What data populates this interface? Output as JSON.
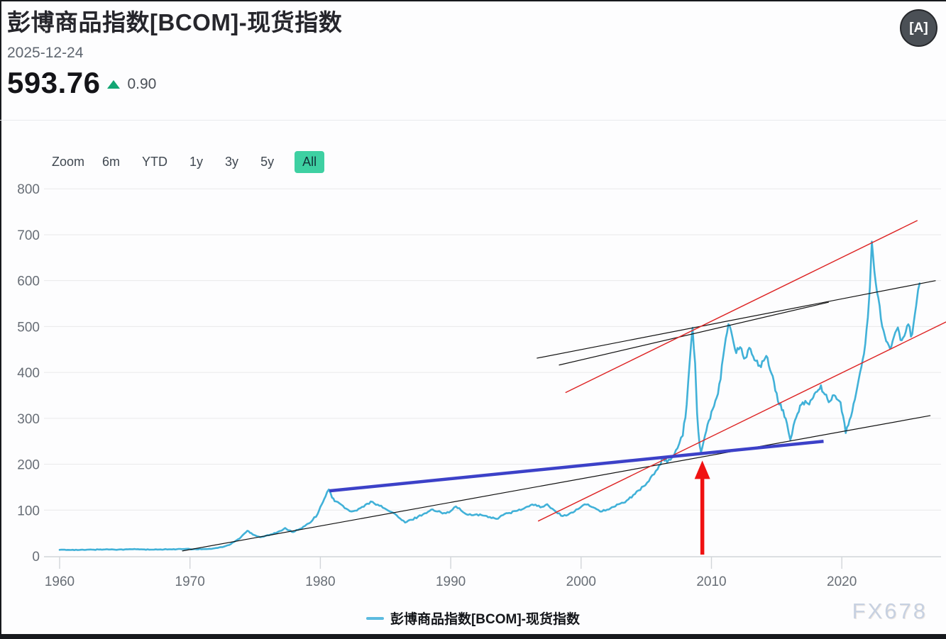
{
  "header": {
    "title": "彭博商品指数[BCOM]-现货指数",
    "date": "2025-12-24",
    "price": "593.76",
    "change": "0.90",
    "change_direction": "up",
    "font_icon": "[A]"
  },
  "toolbar": {
    "zoom_label": "Zoom",
    "ranges": [
      "6m",
      "YTD",
      "1y",
      "3y",
      "5y",
      "All"
    ],
    "active_range": "All"
  },
  "legend": {
    "label": "彭博商品指数[BCOM]-现货指数"
  },
  "watermark": "FX678",
  "colors": {
    "series": "#41b1d8",
    "legend_dash": "#5cbbe0",
    "accent_teal": "#3ed0a2",
    "up_green": "#12a673",
    "grid": "#e9e9ea",
    "axis": "#d2d5d9",
    "tick_text": "#686e76",
    "black_line": "#111111",
    "red_line": "#dd2323",
    "blue_line": "#3c41c8",
    "arrow_red": "#f01212"
  },
  "chart_data": {
    "type": "line",
    "title": "彭博商品指数[BCOM]-现货指数",
    "xlabel": "",
    "ylabel": "",
    "xlim": [
      1958.8,
      2026.9
    ],
    "ylim": [
      0,
      800
    ],
    "grid": true,
    "legend_position": "bottom-center",
    "x_ticks": [
      1960,
      1970,
      1980,
      1990,
      2000,
      2010,
      2020
    ],
    "y_ticks": [
      0,
      100,
      200,
      300,
      400,
      500,
      600,
      700,
      800
    ],
    "series": [
      {
        "name": "彭博商品指数[BCOM]-现货指数",
        "color": "#41b1d8",
        "last_value": 593.76,
        "points": [
          [
            1960,
            13.5
          ],
          [
            1960.5,
            13.2
          ],
          [
            1961,
            13.6
          ],
          [
            1961.5,
            13.1
          ],
          [
            1962,
            13.4
          ],
          [
            1962.5,
            13.9
          ],
          [
            1963,
            14.1
          ],
          [
            1963.5,
            14.4
          ],
          [
            1964,
            14.6
          ],
          [
            1964.5,
            14.1
          ],
          [
            1965,
            14.3
          ],
          [
            1965.5,
            14.8
          ],
          [
            1966,
            15.0
          ],
          [
            1966.5,
            14.4
          ],
          [
            1967,
            13.9
          ],
          [
            1967.5,
            14.1
          ],
          [
            1968,
            14.3
          ],
          [
            1968.5,
            14.6
          ],
          [
            1969,
            14.9
          ],
          [
            1969.5,
            15.2
          ],
          [
            1970,
            15.0
          ],
          [
            1970.5,
            14.6
          ],
          [
            1971,
            15.2
          ],
          [
            1971.5,
            15.8
          ],
          [
            1972,
            17.5
          ],
          [
            1972.5,
            19.5
          ],
          [
            1973,
            24
          ],
          [
            1973.4,
            31
          ],
          [
            1973.8,
            38
          ],
          [
            1974.1,
            47
          ],
          [
            1974.4,
            55
          ],
          [
            1974.7,
            50
          ],
          [
            1975,
            45
          ],
          [
            1975.4,
            41
          ],
          [
            1975.8,
            44
          ],
          [
            1976.2,
            47
          ],
          [
            1976.6,
            50
          ],
          [
            1977,
            55
          ],
          [
            1977.3,
            61
          ],
          [
            1977.6,
            56
          ],
          [
            1977.9,
            52
          ],
          [
            1978.3,
            57
          ],
          [
            1978.7,
            64
          ],
          [
            1979,
            70
          ],
          [
            1979.4,
            78
          ],
          [
            1979.8,
            92
          ],
          [
            1980.1,
            112
          ],
          [
            1980.4,
            130
          ],
          [
            1980.65,
            145
          ],
          [
            1980.9,
            127
          ],
          [
            1981.2,
            119
          ],
          [
            1981.6,
            112
          ],
          [
            1982,
            103
          ],
          [
            1982.4,
            97
          ],
          [
            1982.8,
            99
          ],
          [
            1983.2,
            107
          ],
          [
            1983.6,
            114
          ],
          [
            1984,
            118
          ],
          [
            1984.4,
            112
          ],
          [
            1984.8,
            105
          ],
          [
            1985.2,
            99
          ],
          [
            1985.6,
            94
          ],
          [
            1986,
            84
          ],
          [
            1986.5,
            73
          ],
          [
            1987,
            79
          ],
          [
            1987.5,
            86
          ],
          [
            1988,
            93
          ],
          [
            1988.5,
            101
          ],
          [
            1989,
            97
          ],
          [
            1989.5,
            94
          ],
          [
            1990,
            98
          ],
          [
            1990.4,
            108
          ],
          [
            1990.8,
            99
          ],
          [
            1991.2,
            91
          ],
          [
            1991.6,
            89
          ],
          [
            1992,
            91
          ],
          [
            1992.5,
            88
          ],
          [
            1993,
            85
          ],
          [
            1993.5,
            81
          ],
          [
            1994,
            89
          ],
          [
            1994.5,
            94
          ],
          [
            1995,
            98
          ],
          [
            1995.5,
            102
          ],
          [
            1996,
            108
          ],
          [
            1996.5,
            112
          ],
          [
            1997,
            107
          ],
          [
            1997.4,
            113
          ],
          [
            1997.8,
            103
          ],
          [
            1998.2,
            93
          ],
          [
            1998.6,
            87
          ],
          [
            1999,
            90
          ],
          [
            1999.5,
            97
          ],
          [
            2000,
            107
          ],
          [
            2000.4,
            112
          ],
          [
            2000.8,
            107
          ],
          [
            2001.2,
            102
          ],
          [
            2001.6,
            97
          ],
          [
            2002,
            101
          ],
          [
            2002.5,
            107
          ],
          [
            2003,
            114
          ],
          [
            2003.5,
            121
          ],
          [
            2004,
            133
          ],
          [
            2004.4,
            143
          ],
          [
            2004.8,
            152
          ],
          [
            2005.2,
            163
          ],
          [
            2005.6,
            178
          ],
          [
            2006,
            198
          ],
          [
            2006.3,
            214
          ],
          [
            2006.6,
            204
          ],
          [
            2007,
            216
          ],
          [
            2007.4,
            235
          ],
          [
            2007.8,
            262
          ],
          [
            2008.1,
            330
          ],
          [
            2008.35,
            430
          ],
          [
            2008.55,
            497
          ],
          [
            2008.75,
            420
          ],
          [
            2008.9,
            310
          ],
          [
            2009.1,
            240
          ],
          [
            2009.2,
            226
          ],
          [
            2009.5,
            262
          ],
          [
            2009.8,
            295
          ],
          [
            2010.1,
            320
          ],
          [
            2010.4,
            345
          ],
          [
            2010.7,
            385
          ],
          [
            2011,
            455
          ],
          [
            2011.3,
            505
          ],
          [
            2011.6,
            478
          ],
          [
            2011.9,
            442
          ],
          [
            2012.2,
            455
          ],
          [
            2012.5,
            430
          ],
          [
            2012.8,
            448
          ],
          [
            2013.1,
            440
          ],
          [
            2013.4,
            425
          ],
          [
            2013.7,
            415
          ],
          [
            2014,
            425
          ],
          [
            2014.3,
            432
          ],
          [
            2014.6,
            398
          ],
          [
            2014.9,
            360
          ],
          [
            2015.2,
            330
          ],
          [
            2015.5,
            318
          ],
          [
            2015.8,
            288
          ],
          [
            2016.05,
            253
          ],
          [
            2016.3,
            285
          ],
          [
            2016.6,
            310
          ],
          [
            2016.9,
            330
          ],
          [
            2017.2,
            338
          ],
          [
            2017.5,
            330
          ],
          [
            2017.8,
            345
          ],
          [
            2018.1,
            358
          ],
          [
            2018.4,
            372
          ],
          [
            2018.7,
            352
          ],
          [
            2019,
            335
          ],
          [
            2019.3,
            350
          ],
          [
            2019.6,
            342
          ],
          [
            2019.9,
            335
          ],
          [
            2020.1,
            305
          ],
          [
            2020.3,
            268
          ],
          [
            2020.5,
            285
          ],
          [
            2020.8,
            315
          ],
          [
            2021.1,
            355
          ],
          [
            2021.4,
            400
          ],
          [
            2021.7,
            440
          ],
          [
            2022,
            520
          ],
          [
            2022.15,
            585
          ],
          [
            2022.3,
            685
          ],
          [
            2022.5,
            620
          ],
          [
            2022.7,
            575
          ],
          [
            2022.9,
            545
          ],
          [
            2023.1,
            500
          ],
          [
            2023.4,
            468
          ],
          [
            2023.7,
            452
          ],
          [
            2024,
            478
          ],
          [
            2024.3,
            498
          ],
          [
            2024.6,
            470
          ],
          [
            2024.9,
            488
          ],
          [
            2025.1,
            505
          ],
          [
            2025.3,
            478
          ],
          [
            2025.5,
            505
          ],
          [
            2025.7,
            545
          ],
          [
            2025.85,
            580
          ],
          [
            2025.97,
            594
          ]
        ]
      }
    ],
    "annotations": {
      "trendlines": [
        {
          "name": "black-support-line",
          "color": "#111111",
          "width": 1.2,
          "from": [
            1969.4,
            11
          ],
          "to": [
            2026.8,
            306
          ]
        },
        {
          "name": "black-resistance-line-1",
          "color": "#111111",
          "width": 1.2,
          "from": [
            1996.6,
            431
          ],
          "to": [
            2027.2,
            600
          ]
        },
        {
          "name": "black-resistance-line-2",
          "color": "#111111",
          "width": 1.2,
          "from": [
            1998.3,
            416
          ],
          "to": [
            2019.0,
            553
          ]
        },
        {
          "name": "red-channel-upper",
          "color": "#dd2323",
          "width": 1.4,
          "from": [
            1998.8,
            356
          ],
          "to": [
            2025.8,
            731
          ]
        },
        {
          "name": "red-channel-lower",
          "color": "#dd2323",
          "width": 1.4,
          "from": [
            1996.7,
            76
          ],
          "to": [
            2028.0,
            510
          ]
        },
        {
          "name": "blue-trendline",
          "color": "#3c41c8",
          "width": 4.5,
          "from": [
            1980.7,
            142
          ],
          "to": [
            2018.6,
            250
          ]
        }
      ],
      "arrow": {
        "name": "red-up-arrow",
        "color": "#f01212",
        "x_year": 2009.3,
        "from_value": 3,
        "to_value": 208
      }
    }
  }
}
